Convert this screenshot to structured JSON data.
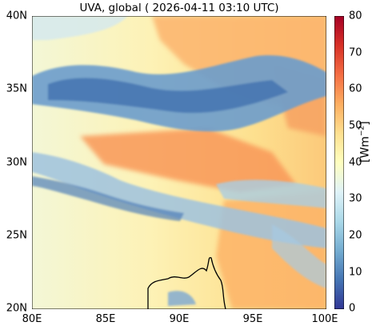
{
  "title": "UVA, global ( 2026-04-11 03:10 UTC)",
  "colorbar": {
    "label": "[Wm",
    "label_exp": "−2",
    "label_close": "]",
    "ticks": [
      "0",
      "10",
      "20",
      "30",
      "40",
      "50",
      "60",
      "70",
      "80"
    ],
    "range": [
      0,
      80
    ],
    "colormap": [
      "#313695",
      "#4575b4",
      "#74add1",
      "#abd9e9",
      "#e0f3f8",
      "#ffffbf",
      "#fee090",
      "#fdae61",
      "#f46d43",
      "#d73027",
      "#a50026"
    ]
  },
  "map": {
    "lat_range": [
      20,
      40
    ],
    "lon_range": [
      80,
      100
    ],
    "y_ticks": [
      "40N",
      "35N",
      "30N",
      "25N",
      "20N"
    ],
    "x_ticks": [
      "80E",
      "85E",
      "90E",
      "95E",
      "100E"
    ],
    "coastline": "bay-of-bengal-coast"
  }
}
